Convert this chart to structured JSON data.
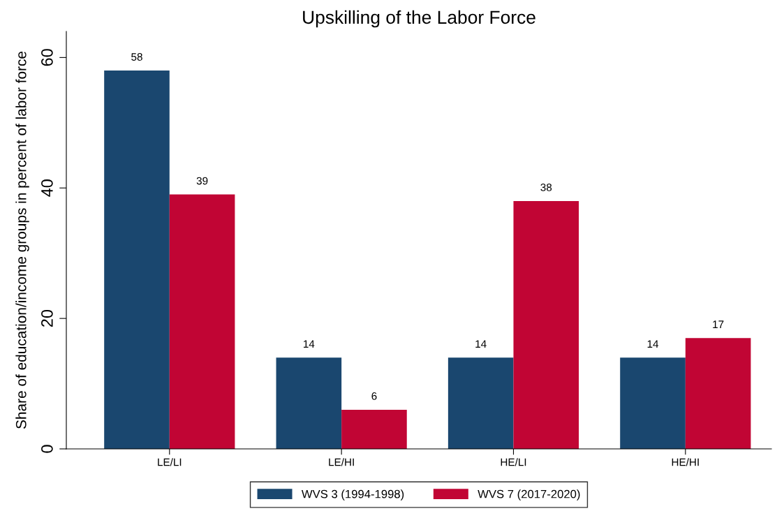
{
  "chart_data": {
    "type": "bar",
    "title": "Upskilling of the Labor Force",
    "ylabel": "Share of education/income groups in percent of labor force",
    "categories": [
      "LE/LI",
      "LE/HI",
      "HE/LI",
      "HE/HI"
    ],
    "series": [
      {
        "name": "WVS 3 (1994-1998)",
        "color": "#1a476f",
        "values": [
          58,
          14,
          14,
          14
        ]
      },
      {
        "name": "WVS 7 (2017-2020)",
        "color": "#c10534",
        "values": [
          39,
          6,
          38,
          17
        ]
      }
    ],
    "ylim": [
      0,
      64
    ],
    "yticks": [
      0,
      20,
      40,
      60
    ],
    "data_labels": true,
    "grid": false,
    "legend": "bottom"
  }
}
